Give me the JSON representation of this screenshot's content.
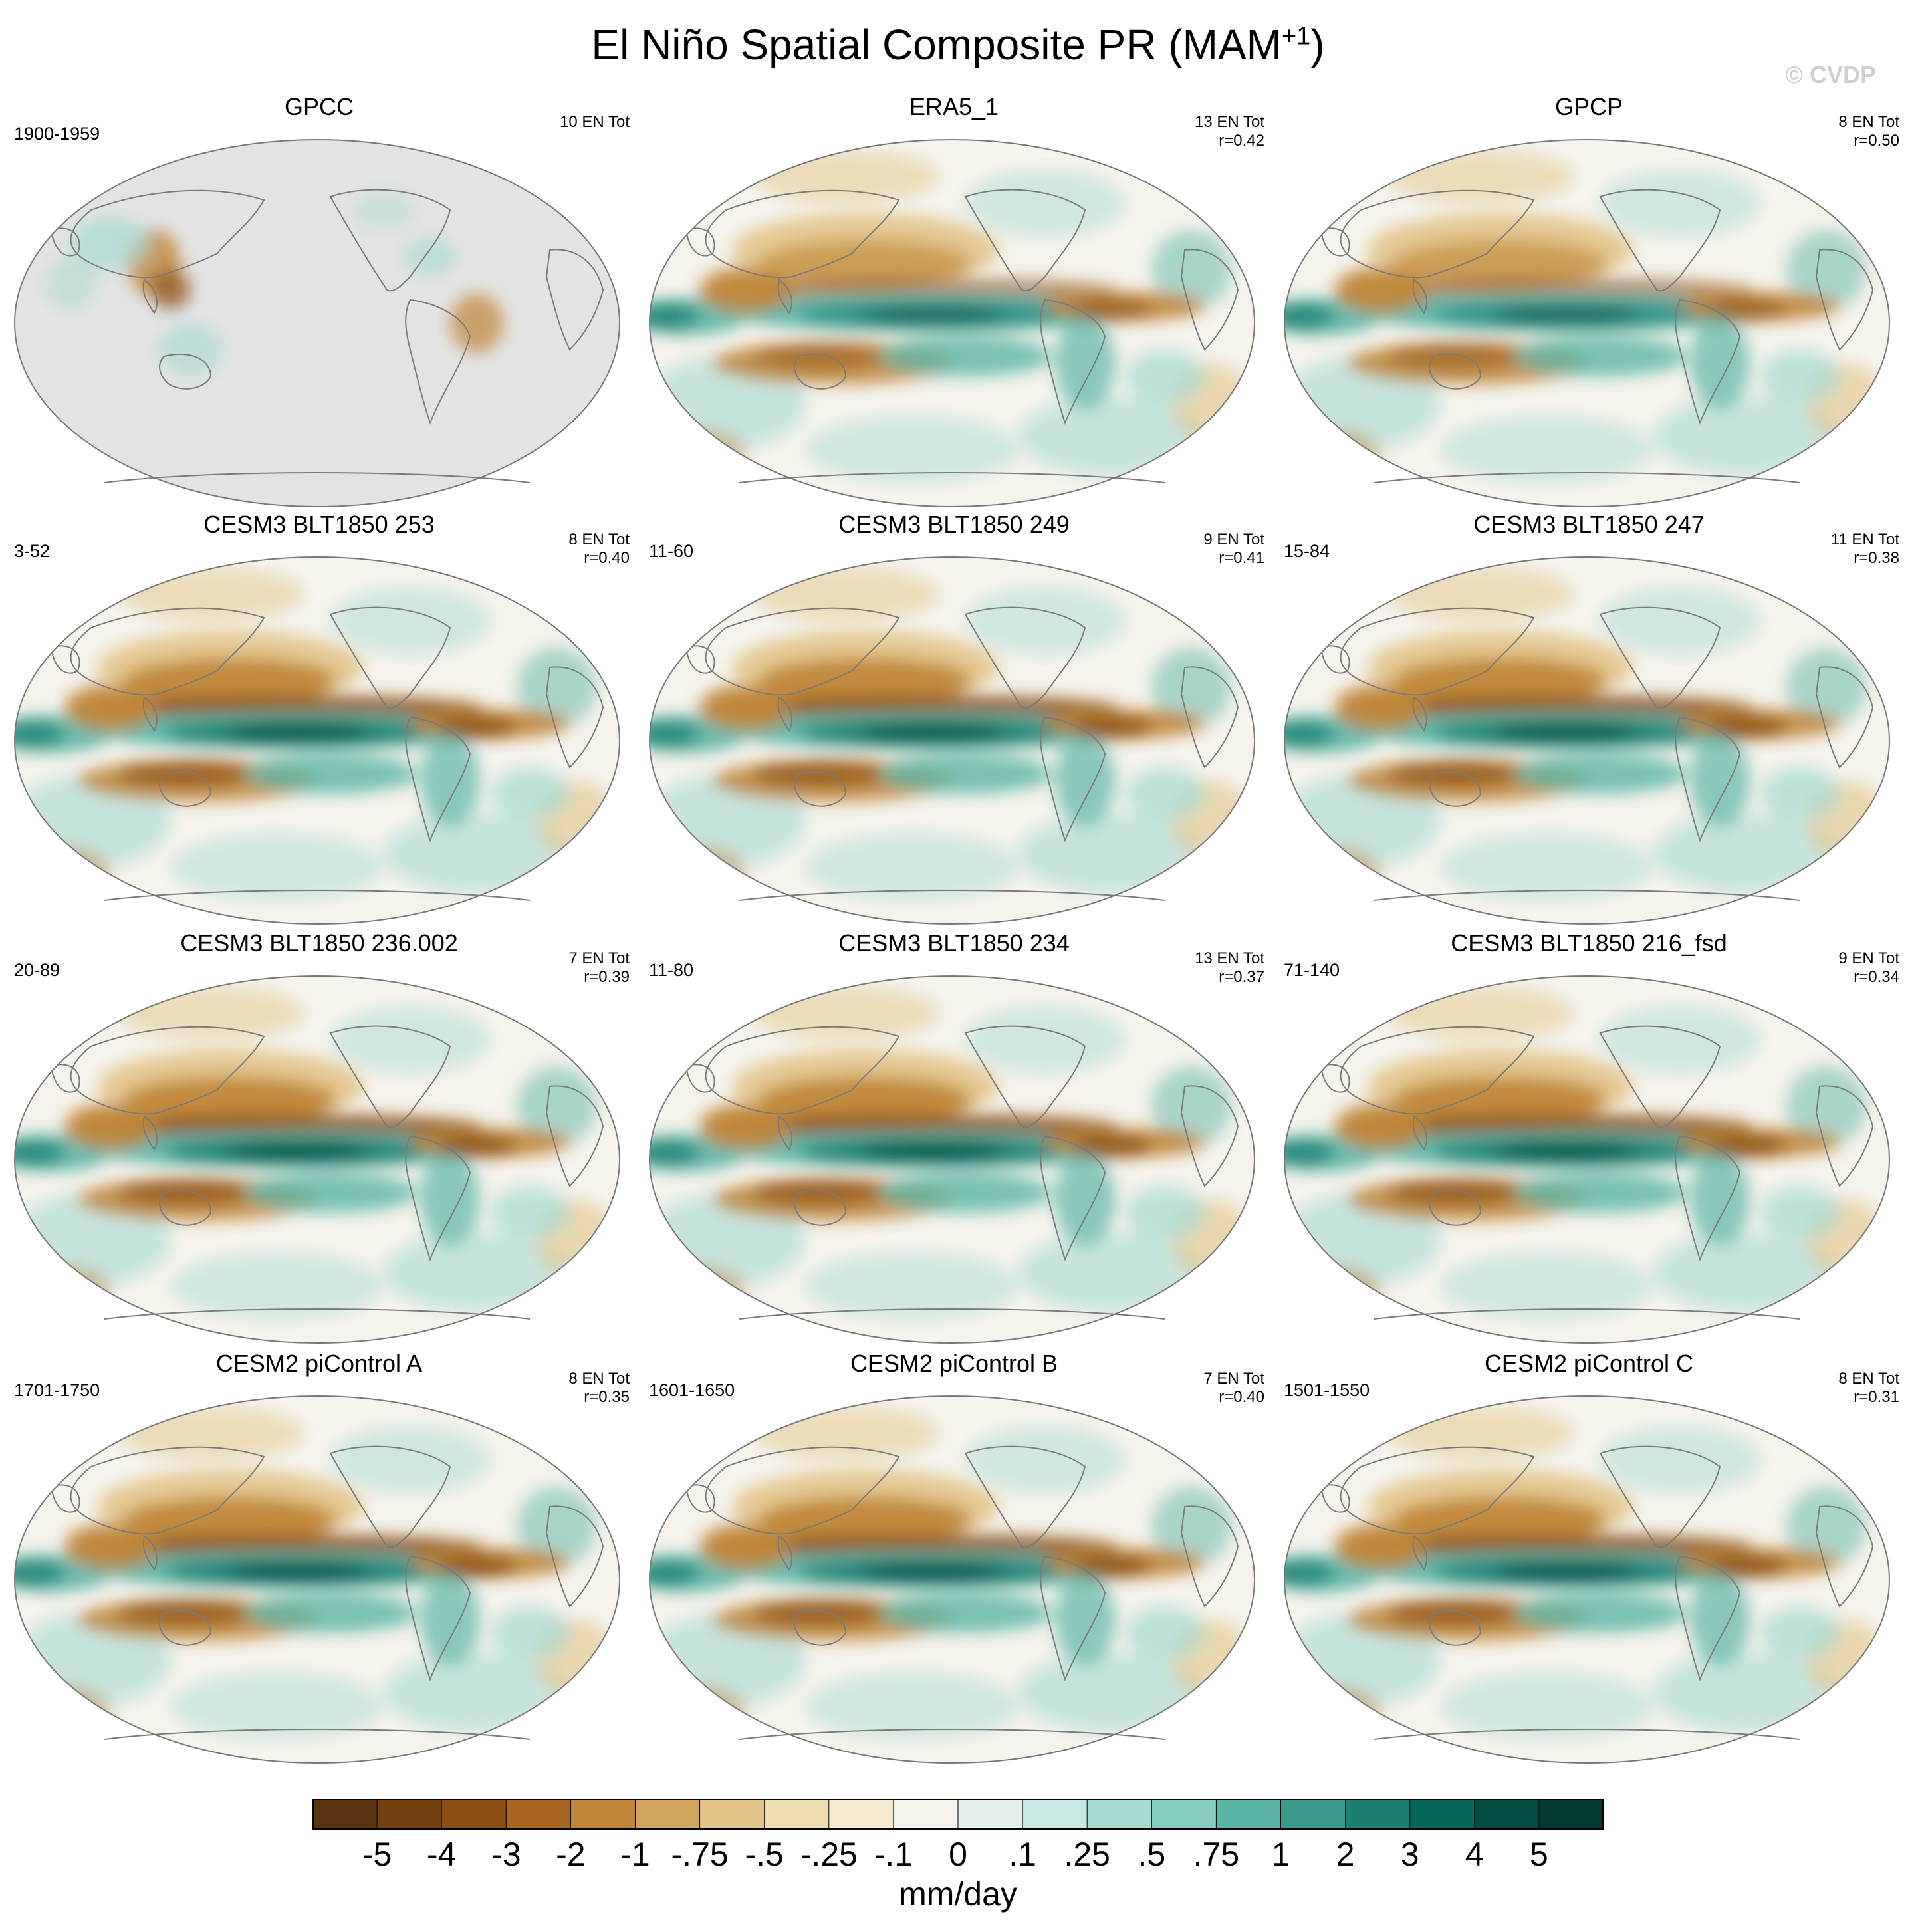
{
  "figure": {
    "title": "El Niño Spatial Composite PR (MAM",
    "title_sup": "+1",
    "title_end": ")",
    "watermark": "© CVDP"
  },
  "panels": [
    {
      "name": "GPCC",
      "period": "1900-1959",
      "events": "10 EN Tot",
      "corr": "",
      "pattern": "obs_land"
    },
    {
      "name": "ERA5_1",
      "period": "",
      "events": "13 EN Tot",
      "corr": "r=0.42",
      "pattern": "obs"
    },
    {
      "name": "GPCP",
      "period": "",
      "events": "8 EN Tot",
      "corr": "r=0.50",
      "pattern": "obs"
    },
    {
      "name": "CESM3 BLT1850 253",
      "period": "3-52",
      "events": "8 EN Tot",
      "corr": "r=0.40",
      "pattern": "model"
    },
    {
      "name": "CESM3 BLT1850 249",
      "period": "11-60",
      "events": "9 EN Tot",
      "corr": "r=0.41",
      "pattern": "model"
    },
    {
      "name": "CESM3 BLT1850 247",
      "period": "15-84",
      "events": "11 EN Tot",
      "corr": "r=0.38",
      "pattern": "model"
    },
    {
      "name": "CESM3 BLT1850 236.002",
      "period": "20-89",
      "events": "7 EN Tot",
      "corr": "r=0.39",
      "pattern": "model"
    },
    {
      "name": "CESM3 BLT1850 234",
      "period": "11-80",
      "events": "13 EN Tot",
      "corr": "r=0.37",
      "pattern": "model"
    },
    {
      "name": "CESM3 BLT1850 216_fsd",
      "period": "71-140",
      "events": "9 EN Tot",
      "corr": "r=0.34",
      "pattern": "model"
    },
    {
      "name": "CESM2 piControl A",
      "period": "1701-1750",
      "events": "8 EN Tot",
      "corr": "r=0.35",
      "pattern": "model"
    },
    {
      "name": "CESM2 piControl B",
      "period": "1601-1650",
      "events": "7 EN Tot",
      "corr": "r=0.40",
      "pattern": "model"
    },
    {
      "name": "CESM2 piControl C",
      "period": "1501-1550",
      "events": "8 EN Tot",
      "corr": "r=0.31",
      "pattern": "model"
    }
  ],
  "colorbar": {
    "units": "mm/day",
    "tick_labels": [
      "-5",
      "-4",
      "-3",
      "-2",
      "-1",
      "-.75",
      "-.5",
      "-.25",
      "-.1",
      "0",
      ".1",
      ".25",
      ".5",
      ".75",
      "1",
      "2",
      "3",
      "4",
      "5"
    ],
    "colors": [
      "#5a3310",
      "#734010",
      "#8c4f12",
      "#a6661f",
      "#c08536",
      "#d2a55e",
      "#e2c488",
      "#efdcb1",
      "#f6ead0",
      "#f5f3ec",
      "#e4f1ef",
      "#c9e8e3",
      "#a7dbd2",
      "#84cdc0",
      "#5bb5a6",
      "#3b9a8d",
      "#1d7f73",
      "#06665a",
      "#034d42",
      "#013a31"
    ]
  }
}
